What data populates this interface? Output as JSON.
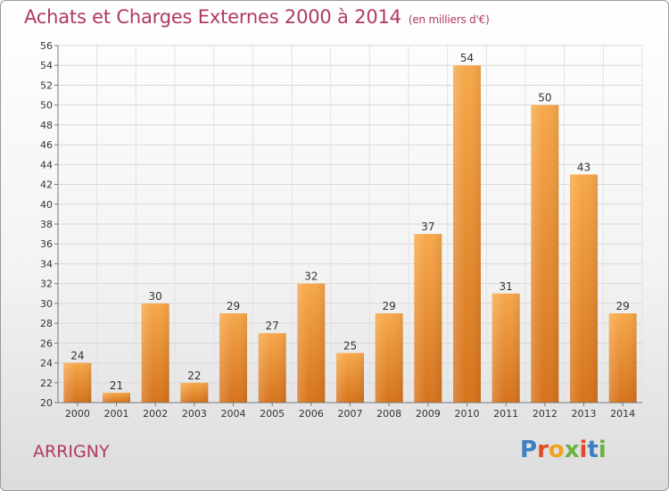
{
  "header": {
    "title": "Achats et Charges Externes 2000 à 2014",
    "subtitle": "(en milliers d'€)"
  },
  "footer": {
    "commune": "ARRIGNY",
    "logo_text": "Proxiti"
  },
  "colors": {
    "bar": "#f29a3a",
    "bar_dark": "#d6731c",
    "title": "#b03a5e",
    "logo": [
      "#3d7fc4",
      "#e04b2a",
      "#f0a21a",
      "#6ab23e",
      "#e04b2a",
      "#3d7fc4",
      "#6ab23e"
    ]
  },
  "chart_data": {
    "type": "bar",
    "title": "Achats et Charges Externes 2000 à 2014",
    "subtitle": "(en milliers d'€)",
    "categories": [
      "2000",
      "2001",
      "2002",
      "2003",
      "2004",
      "2005",
      "2006",
      "2007",
      "2008",
      "2009",
      "2010",
      "2011",
      "2012",
      "2013",
      "2014"
    ],
    "values": [
      24,
      21,
      30,
      22,
      29,
      27,
      32,
      25,
      29,
      37,
      54,
      31,
      50,
      43,
      29
    ],
    "ylim": [
      20,
      56
    ],
    "yticks": [
      20,
      22,
      24,
      26,
      28,
      30,
      32,
      34,
      36,
      38,
      40,
      42,
      44,
      46,
      48,
      50,
      52,
      54,
      56
    ],
    "grid": true
  }
}
